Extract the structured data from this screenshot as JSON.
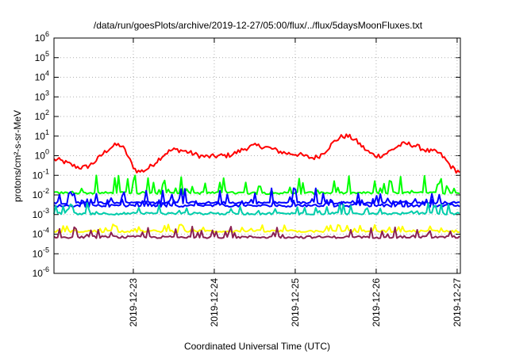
{
  "chart_data": {
    "type": "line",
    "title": "/data/run/goesPlots/archive/2019-12-27/05:00/flux/../flux/5daysMoonFluxes.txt",
    "xlabel": "Coordinated Universal Time (UTC)",
    "ylabel": "protons/cm²-s-sr-MeV",
    "y_scale": "log",
    "ylim": [
      1e-06,
      1000000.0
    ],
    "xlim": [
      "2019-12-22T00:30",
      "2019-12-27T05:00"
    ],
    "grid": true,
    "legend": "none",
    "x_ticks": [
      "2019-12-23",
      "2019-12-24",
      "2019-12-25",
      "2019-12-26",
      "2019-12-27"
    ],
    "y_ticks": [
      {
        "base": "10",
        "exp": "-6"
      },
      {
        "base": "10",
        "exp": "-5"
      },
      {
        "base": "10",
        "exp": "-4"
      },
      {
        "base": "10",
        "exp": "-3"
      },
      {
        "base": "10",
        "exp": "-2"
      },
      {
        "base": "10",
        "exp": "-1"
      },
      {
        "base": "10",
        "exp": "0"
      },
      {
        "base": "10",
        "exp": "1"
      },
      {
        "base": "10",
        "exp": "2"
      },
      {
        "base": "10",
        "exp": "3"
      },
      {
        "base": "10",
        "exp": "4"
      },
      {
        "base": "10",
        "exp": "5"
      },
      {
        "base": "10",
        "exp": "6"
      }
    ],
    "series": [
      {
        "color": "#ff0000",
        "width": 2,
        "x_days": [
          0.0,
          0.35,
          0.8,
          1.05,
          1.5,
          1.9,
          2.1,
          2.5,
          2.95,
          3.2,
          3.6,
          4.0,
          4.35,
          4.7,
          5.01
        ],
        "y_log10": [
          -0.2,
          -0.6,
          0.55,
          -0.8,
          0.3,
          -0.05,
          0.0,
          0.5,
          0.1,
          -0.1,
          1.0,
          0.0,
          0.6,
          0.2,
          -0.8
        ]
      },
      {
        "color": "#00ff00",
        "width": 2,
        "base_log10": -1.9,
        "spike_log10": -1.0
      },
      {
        "color": "#0000ff",
        "width": 2,
        "base_log10": -2.4,
        "spike_log10": -1.6
      },
      {
        "color": "#0000ff",
        "width": 2,
        "base_log10": -2.55,
        "spike_log10": -2.2
      },
      {
        "color": "#00ccaa",
        "width": 2,
        "base_log10": -2.95,
        "spike_log10": -2.4
      },
      {
        "color": "#ffff00",
        "width": 2,
        "base_log10": -3.85,
        "spike_log10": -3.5
      },
      {
        "color": "#8b2252",
        "width": 2,
        "base_log10": -4.15,
        "spike_log10": -3.6
      }
    ]
  }
}
